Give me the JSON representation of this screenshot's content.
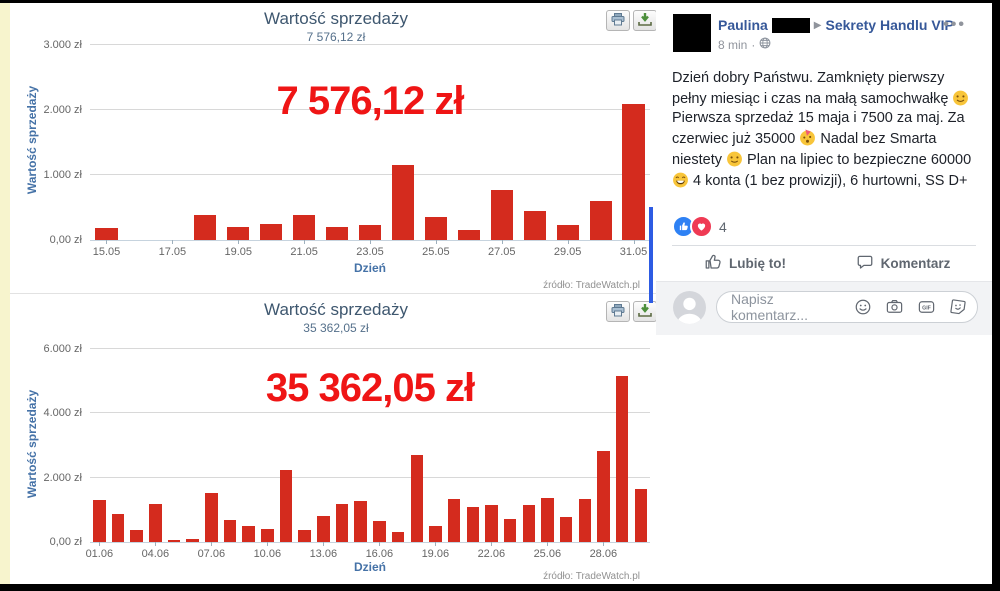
{
  "chart_data": [
    {
      "type": "bar",
      "title": "Wartość sprzedaży",
      "subtitle": "7 576,12 zł",
      "annotation": "7 576,12 zł",
      "xlabel": "Dzień",
      "ylabel": "Wartość sprzedaży",
      "credit": "źródło: TradeWatch.pl",
      "ylim": [
        0,
        3000
      ],
      "y_ticks": [
        {
          "value": 3000,
          "label": "3.000 zł"
        },
        {
          "value": 2000,
          "label": "2.000 zł"
        },
        {
          "value": 1000,
          "label": "1.000 zł"
        },
        {
          "value": 0,
          "label": "0,00 zł"
        }
      ],
      "categories": [
        "15.05",
        "16.05",
        "17.05",
        "18.05",
        "19.05",
        "20.05",
        "21.05",
        "22.05",
        "23.05",
        "24.05",
        "25.05",
        "26.05",
        "27.05",
        "28.05",
        "29.05",
        "30.05",
        "31.05"
      ],
      "values": [
        190,
        0,
        0,
        390,
        200,
        250,
        390,
        200,
        230,
        1160,
        360,
        160,
        770,
        440,
        230,
        600,
        2100
      ],
      "x_ticks": [
        {
          "index": 0,
          "label": "15.05"
        },
        {
          "index": 2,
          "label": "17.05"
        },
        {
          "index": 4,
          "label": "19.05"
        },
        {
          "index": 6,
          "label": "21.05"
        },
        {
          "index": 8,
          "label": "23.05"
        },
        {
          "index": 10,
          "label": "25.05"
        },
        {
          "index": 12,
          "label": "27.05"
        },
        {
          "index": 14,
          "label": "29.05"
        },
        {
          "index": 16,
          "label": "31.05"
        }
      ],
      "bar_color": "#d42b1e",
      "annotation_color": "#ef1515",
      "toolbar_icons": [
        "print",
        "download"
      ]
    },
    {
      "type": "bar",
      "title": "Wartość sprzedaży",
      "subtitle": "35 362,05 zł",
      "annotation": "35 362,05 zł",
      "xlabel": "Dzień",
      "ylabel": "Wartość sprzedaży",
      "credit": "źródło: TradeWatch.pl",
      "ylim": [
        0,
        6000
      ],
      "y_ticks": [
        {
          "value": 6000,
          "label": "6.000 zł"
        },
        {
          "value": 4000,
          "label": "4.000 zł"
        },
        {
          "value": 2000,
          "label": "2.000 zł"
        },
        {
          "value": 0,
          "label": "0,00 zł"
        }
      ],
      "categories": [
        "01.06",
        "02.06",
        "03.06",
        "04.06",
        "05.06",
        "06.06",
        "07.06",
        "08.06",
        "09.06",
        "10.06",
        "11.06",
        "12.06",
        "13.06",
        "14.06",
        "15.06",
        "16.06",
        "17.06",
        "18.06",
        "19.06",
        "20.06",
        "21.06",
        "22.06",
        "23.06",
        "24.06",
        "25.06",
        "26.06",
        "27.06",
        "28.06",
        "29.06",
        "30.06"
      ],
      "values": [
        1300,
        870,
        380,
        1180,
        50,
        100,
        1520,
        680,
        500,
        420,
        2250,
        360,
        820,
        1170,
        1280,
        660,
        300,
        2700,
        490,
        1330,
        1100,
        1140,
        700,
        1150,
        1370,
        780,
        1350,
        2820,
        5150,
        1650
      ],
      "x_ticks": [
        {
          "index": 0,
          "label": "01.06"
        },
        {
          "index": 3,
          "label": "04.06"
        },
        {
          "index": 6,
          "label": "07.06"
        },
        {
          "index": 9,
          "label": "10.06"
        },
        {
          "index": 12,
          "label": "13.06"
        },
        {
          "index": 15,
          "label": "16.06"
        },
        {
          "index": 18,
          "label": "19.06"
        },
        {
          "index": 21,
          "label": "22.06"
        },
        {
          "index": 24,
          "label": "25.06"
        },
        {
          "index": 27,
          "label": "28.06"
        }
      ],
      "bar_color": "#d42b1e",
      "annotation_color": "#ef1515",
      "toolbar_icons": [
        "print",
        "download"
      ]
    }
  ],
  "facebook": {
    "author": "Paulina",
    "group": "Sekrety Handlu VIP",
    "time": "8 min",
    "meta_separator": "·",
    "privacy_icon": "globe",
    "more_label": "•••",
    "post_text": "Dzień dobry Państwu. Zamknięty pierwszy pełny miesiąc i czas na małą samochwałkę 🙂 Pierwsza sprzedaż 15 maja i 7500 za maj. Za czerwiec już 35000 🥳 Nadal bez Smarta niestety 😕 Plan na lipiec to bezpieczne 60000 😄 4 konta (1 bez prowizji), 6 hurtowni, SS D+",
    "reactions": {
      "count": "4",
      "icons": [
        "like",
        "love"
      ],
      "like_color": "#2e81f4",
      "love_color": "#ef3a54"
    },
    "actions": {
      "like_label": "Lubię to!",
      "comment_label": "Komentarz"
    },
    "comment_box": {
      "placeholder": "Napisz komentarz...",
      "icons": [
        "emoji",
        "camera",
        "gif",
        "sticker"
      ],
      "gif_badge": "GIF"
    }
  }
}
